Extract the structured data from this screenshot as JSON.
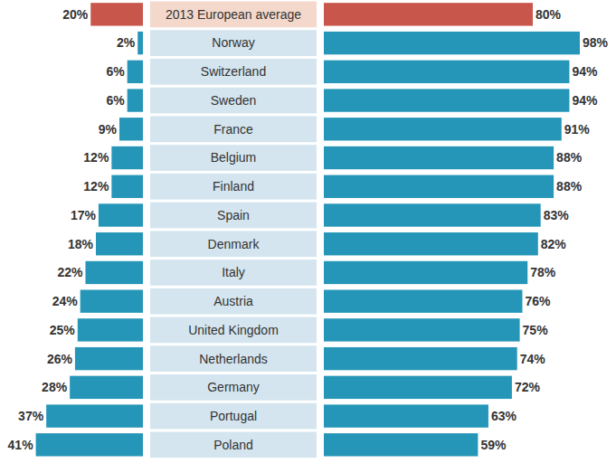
{
  "chart_data": {
    "type": "bar",
    "orientation": "horizontal",
    "data_labels": true,
    "tick_labels": false,
    "categories": [
      "2013 European average",
      "Norway",
      "Switzerland",
      "Sweden",
      "France",
      "Belgium",
      "Finland",
      "Spain",
      "Denmark",
      "Italy",
      "Austria",
      "United Kingdom",
      "Netherlands",
      "Germany",
      "Portugal",
      "Poland"
    ],
    "series": [
      {
        "colors": [
          "#c9564b",
          "#2596b8",
          "#2596b8",
          "#2596b8",
          "#2596b8",
          "#2596b8",
          "#2596b8",
          "#2596b8",
          "#2596b8",
          "#2596b8",
          "#2596b8",
          "#2596b8",
          "#2596b8",
          "#2596b8",
          "#2596b8",
          "#2596b8"
        ],
        "values": [
          20,
          2,
          6,
          6,
          9,
          12,
          12,
          17,
          18,
          22,
          24,
          25,
          26,
          28,
          37,
          41
        ],
        "value_labels": [
          "20%",
          "2%",
          "6%",
          "6%",
          "9%",
          "12%",
          "12%",
          "17%",
          "18%",
          "22%",
          "24%",
          "25%",
          "26%",
          "28%",
          "37%",
          "41%"
        ]
      },
      {
        "colors": [
          "#c9564b",
          "#2596b8",
          "#2596b8",
          "#2596b8",
          "#2596b8",
          "#2596b8",
          "#2596b8",
          "#2596b8",
          "#2596b8",
          "#2596b8",
          "#2596b8",
          "#2596b8",
          "#2596b8",
          "#2596b8",
          "#2596b8",
          "#2596b8"
        ],
        "values": [
          80,
          98,
          94,
          94,
          91,
          88,
          88,
          83,
          82,
          78,
          76,
          75,
          74,
          72,
          63,
          59
        ],
        "value_labels": [
          "80%",
          "98%",
          "94%",
          "94%",
          "91%",
          "88%",
          "88%",
          "83%",
          "82%",
          "78%",
          "76%",
          "75%",
          "74%",
          "72%",
          "63%",
          "59%"
        ]
      }
    ]
  }
}
